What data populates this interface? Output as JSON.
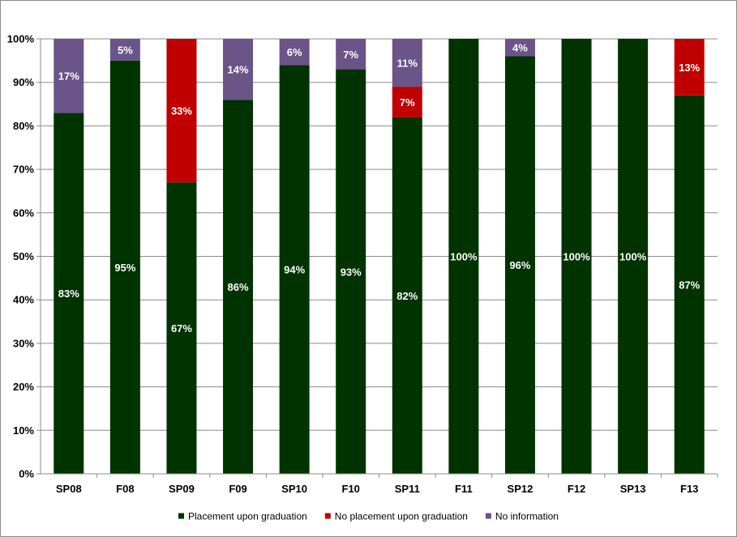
{
  "chart_data": {
    "type": "bar",
    "stacked": true,
    "categories": [
      "SP08",
      "F08",
      "SP09",
      "F09",
      "SP10",
      "F10",
      "SP11",
      "F11",
      "SP12",
      "F12",
      "SP13",
      "F13"
    ],
    "series": [
      {
        "name": "Placement upon graduation",
        "color": "#003300",
        "values": [
          83,
          95,
          67,
          86,
          94,
          93,
          82,
          100,
          96,
          100,
          100,
          87
        ],
        "labels": [
          "83%",
          "95%",
          "67%",
          "86%",
          "94%",
          "93%",
          "82%",
          "100%",
          "96%",
          "100%",
          "100%",
          "87%"
        ]
      },
      {
        "name": "No placement upon graduation",
        "color": "#c00000",
        "values": [
          0,
          0,
          33,
          0,
          0,
          0,
          7,
          0,
          0,
          0,
          0,
          13
        ],
        "labels": [
          "",
          "",
          "33%",
          "",
          "",
          "",
          "7%",
          "",
          "",
          "",
          "",
          "13%"
        ]
      },
      {
        "name": "No information",
        "color": "#6b5487",
        "values": [
          17,
          5,
          0,
          14,
          6,
          7,
          11,
          0,
          4,
          0,
          0,
          0
        ],
        "labels": [
          "17%",
          "5%",
          "",
          "14%",
          "6%",
          "7%",
          "11%",
          "",
          "4%",
          "",
          "",
          ""
        ]
      }
    ],
    "yticks": [
      "0%",
      "10%",
      "20%",
      "30%",
      "40%",
      "50%",
      "60%",
      "70%",
      "80%",
      "90%",
      "100%"
    ],
    "ylim": [
      0,
      100
    ],
    "grid": true,
    "legend_position": "bottom",
    "title": "",
    "xlabel": "",
    "ylabel": ""
  }
}
